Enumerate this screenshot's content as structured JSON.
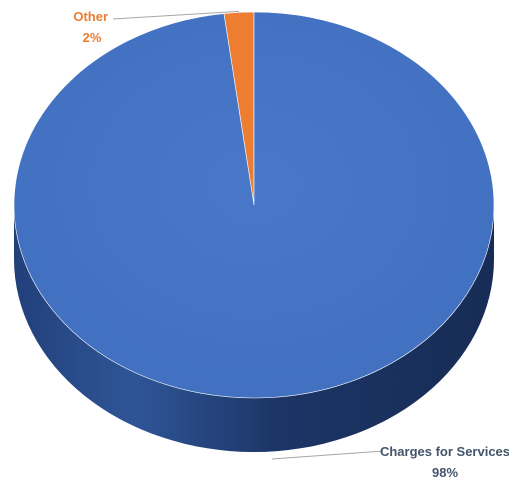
{
  "chart_data": {
    "type": "pie",
    "style": "3d",
    "slices": [
      {
        "label": "Other",
        "percent_label": "2%",
        "value": 2,
        "color": "#ED7D31",
        "label_color": "#ED7D31"
      },
      {
        "label": "Charges for Services",
        "percent_label": "98%",
        "value": 98,
        "color": "#4472C4",
        "label_color": "#44546A"
      }
    ],
    "side_color_dark": "#1F3864",
    "side_color_mid": "#2F5597",
    "leader_line_color": "#A6A6A6"
  }
}
